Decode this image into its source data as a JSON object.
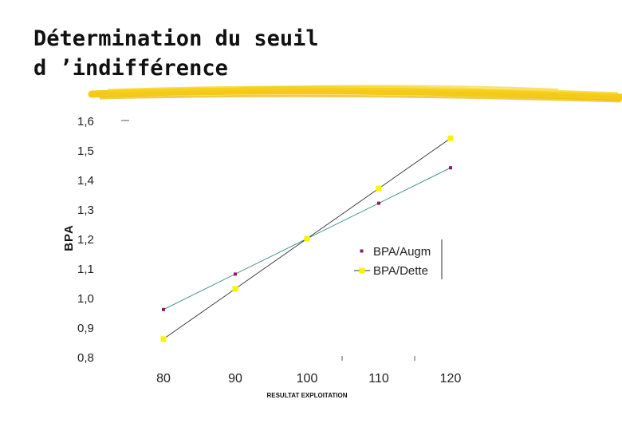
{
  "slide": {
    "title_line1": "Détermination du seuil",
    "title_line2": "d ’indifférence",
    "accent_color": "#f2c400"
  },
  "chart_data": {
    "type": "line",
    "xlabel": "RESULTAT EXPLOITATION",
    "ylabel": "BPA",
    "x": [
      80,
      90,
      100,
      110,
      120
    ],
    "xlim": [
      80,
      120
    ],
    "ylim": [
      0.8,
      1.6
    ],
    "x_tick_labels": [
      "80",
      "90",
      "100",
      "110",
      "120"
    ],
    "y_tick_labels": [
      "1,6",
      "1,5",
      "1,4",
      "1,3",
      "1,2",
      "1,1",
      "1,0",
      "0,9",
      "0,8"
    ],
    "y_tick_values": [
      1.6,
      1.5,
      1.4,
      1.3,
      1.2,
      1.1,
      1.0,
      0.9,
      0.8
    ],
    "grid": false,
    "legend_position": "right",
    "series": [
      {
        "name": "BPA/Augm",
        "values": [
          0.96,
          1.08,
          1.2,
          1.32,
          1.44
        ],
        "color": "#8b1a6b",
        "line_color": "#2e8b7a",
        "marker": "small-square"
      },
      {
        "name": "BPA/Dette",
        "values": [
          0.86,
          1.03,
          1.2,
          1.37,
          1.54
        ],
        "color": "#f5f500",
        "line_color": "#333333",
        "marker": "square"
      }
    ]
  }
}
